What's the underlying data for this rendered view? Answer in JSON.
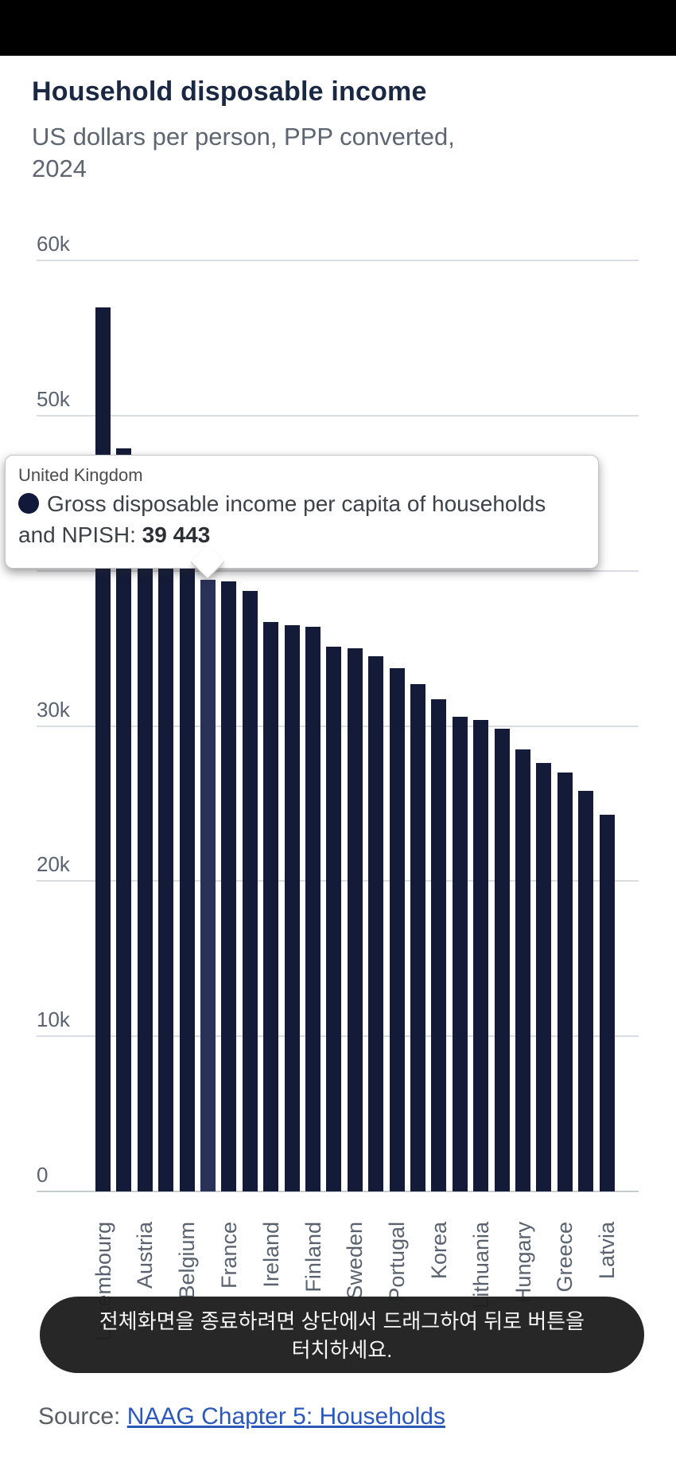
{
  "header": {
    "title": "Household disposable income",
    "subtitle": "US dollars per person, PPP converted, 2024"
  },
  "chart_data": {
    "type": "bar",
    "title": "Household disposable income",
    "subtitle": "US dollars per person, PPP converted, 2024",
    "series_name": "Gross disposable income per capita of households and NPISH",
    "categories": [
      "Luxembourg",
      "",
      "Austria",
      "",
      "Belgium",
      "",
      "France",
      "",
      "Ireland",
      "",
      "Finland",
      "",
      "Sweden",
      "",
      "Portugal",
      "",
      "Korea",
      "",
      "Lithuania",
      "",
      "Hungary",
      "",
      "Greece",
      "",
      "Latvia"
    ],
    "values": [
      57000,
      47900,
      45200,
      43400,
      41500,
      39443,
      39300,
      38700,
      36700,
      36500,
      36400,
      35100,
      35000,
      34500,
      33700,
      32700,
      31700,
      30600,
      30400,
      29800,
      28500,
      27600,
      27000,
      25800,
      24300
    ],
    "highlighted_index": 5,
    "highlighted_label": "United Kingdom",
    "xlabel": "",
    "ylabel": "US dollars per person",
    "ylim": [
      0,
      60000
    ],
    "grid": true,
    "legend_position": "none",
    "bar_color": "#131b38",
    "highlight_color": "#2a3156"
  },
  "y_axis": {
    "ticks": [
      {
        "label": "60k",
        "value": 60000
      },
      {
        "label": "50k",
        "value": 50000
      },
      {
        "label": "40k",
        "value": 40000
      },
      {
        "label": "30k",
        "value": 30000
      },
      {
        "label": "20k",
        "value": 20000
      },
      {
        "label": "10k",
        "value": 10000
      },
      {
        "label": "0",
        "value": 0
      }
    ]
  },
  "bars": [
    {
      "label": "Luxembourg",
      "value": 57000,
      "highlight": false
    },
    {
      "label": "",
      "value": 47900,
      "highlight": false
    },
    {
      "label": "Austria",
      "value": 45200,
      "highlight": false
    },
    {
      "label": "",
      "value": 43400,
      "highlight": false
    },
    {
      "label": "Belgium",
      "value": 41500,
      "highlight": false
    },
    {
      "label": "",
      "value": 39443,
      "highlight": true
    },
    {
      "label": "France",
      "value": 39300,
      "highlight": false
    },
    {
      "label": "",
      "value": 38700,
      "highlight": false
    },
    {
      "label": "Ireland",
      "value": 36700,
      "highlight": false
    },
    {
      "label": "",
      "value": 36500,
      "highlight": false
    },
    {
      "label": "Finland",
      "value": 36400,
      "highlight": false
    },
    {
      "label": "",
      "value": 35100,
      "highlight": false
    },
    {
      "label": "Sweden",
      "value": 35000,
      "highlight": false
    },
    {
      "label": "",
      "value": 34500,
      "highlight": false
    },
    {
      "label": "Portugal",
      "value": 33700,
      "highlight": false
    },
    {
      "label": "",
      "value": 32700,
      "highlight": false
    },
    {
      "label": "Korea",
      "value": 31700,
      "highlight": false
    },
    {
      "label": "",
      "value": 30600,
      "highlight": false
    },
    {
      "label": "Lithuania",
      "value": 30400,
      "highlight": false
    },
    {
      "label": "",
      "value": 29800,
      "highlight": false
    },
    {
      "label": "Hungary",
      "value": 28500,
      "highlight": false
    },
    {
      "label": "",
      "value": 27600,
      "highlight": false
    },
    {
      "label": "Greece",
      "value": 27000,
      "highlight": false
    },
    {
      "label": "",
      "value": 25800,
      "highlight": false
    },
    {
      "label": "Latvia",
      "value": 24300,
      "highlight": false
    }
  ],
  "tooltip": {
    "country": "United Kingdom",
    "series_line1": "Gross disposable income per capita of households",
    "series_line2_prefix": "and NPISH: ",
    "value": "39 443",
    "marker_color": "#11183a"
  },
  "toast": {
    "line1": "전체화면을 종료하려면 상단에서 드래그하여 뒤로 버튼을",
    "line2": "터치하세요."
  },
  "source": {
    "prefix": "Source: ",
    "link_text": "NAAG Chapter 5: Households"
  }
}
